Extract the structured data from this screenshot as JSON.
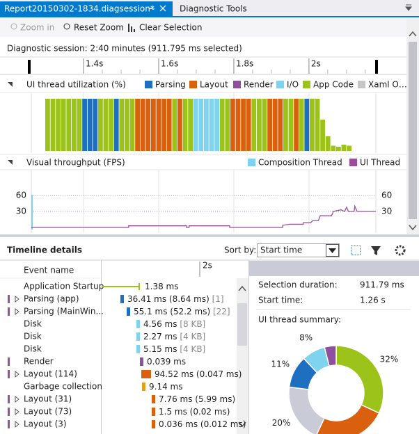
{
  "tabs": {
    "active": "Report20150302-1834.diagsession*",
    "other": "Diagnostic Tools"
  },
  "toolbar": {
    "zoom_in": "Zoom in",
    "reset_zoom": "Reset Zoom",
    "clear_selection": "Clear Selection"
  },
  "session": "Diagnostic session: 2:40 minutes (911.795 ms selected)",
  "ruler": {
    "range": [
      1.261,
      2.178
    ],
    "ticks": [
      {
        "value": 1.4,
        "label": "1.4s"
      },
      {
        "value": 1.6,
        "label": "1.6s"
      },
      {
        "value": 1.8,
        "label": "1.8s"
      },
      {
        "value": 2,
        "label": "2s"
      }
    ]
  },
  "utilization": {
    "title": "UI thread utilization (%)",
    "ylim": [
      0,
      100
    ],
    "legend": [
      {
        "name": "Parsing",
        "color": "#1e6fc0"
      },
      {
        "name": "Layout",
        "color": "#d8600e"
      },
      {
        "name": "Render",
        "color": "#8e4f9e"
      },
      {
        "name": "I/O",
        "color": "#7fd3ee"
      },
      {
        "name": "App Code",
        "color": "#9cc31a"
      },
      {
        "name": "Xaml O…",
        "color": "#c6c6c6"
      }
    ],
    "bar_types": [
      4,
      4,
      4,
      4,
      4,
      4,
      4,
      0,
      0,
      0,
      4,
      4,
      4,
      0,
      4,
      4,
      4,
      1,
      1,
      1,
      1,
      1,
      1,
      1,
      4,
      1,
      4,
      4,
      3,
      3,
      3,
      3,
      3,
      4,
      4,
      1,
      1,
      1,
      1,
      4,
      4,
      4,
      1,
      1,
      1,
      4,
      4,
      1,
      4,
      0,
      4,
      4,
      4,
      4,
      4,
      4,
      4,
      4
    ],
    "bar_values": [
      100,
      100,
      100,
      100,
      100,
      100,
      100,
      100,
      100,
      100,
      100,
      100,
      100,
      100,
      100,
      100,
      100,
      100,
      100,
      100,
      100,
      100,
      100,
      100,
      100,
      100,
      100,
      100,
      100,
      100,
      100,
      100,
      100,
      100,
      100,
      100,
      100,
      100,
      100,
      100,
      100,
      100,
      100,
      100,
      100,
      100,
      100,
      100,
      100,
      100,
      100,
      100,
      60,
      28,
      10,
      8,
      12,
      10
    ]
  },
  "throughput": {
    "title": "Visual throughput (FPS)",
    "ylim": [
      0,
      98
    ],
    "yticks": [
      60,
      30
    ],
    "legend": [
      {
        "name": "Composition Thread",
        "color": "#7fd3ee"
      },
      {
        "name": "UI Thread",
        "color": "#9b4f9b"
      }
    ],
    "x": [
      1.261,
      1.52,
      1.52,
      1.674,
      1.674,
      1.681,
      1.681,
      1.789,
      1.789,
      1.93,
      1.93,
      1.95,
      1.985,
      1.985,
      2.005,
      2.01,
      2.025,
      2.03,
      2.06,
      2.065,
      2.085,
      2.095,
      2.1,
      2.105,
      2.12,
      2.122,
      2.128,
      2.178
    ],
    "values": [
      0,
      0,
      3,
      3,
      0,
      0,
      3,
      3,
      0,
      0,
      4,
      6,
      6,
      9,
      9,
      13,
      13,
      22,
      22,
      30,
      33,
      30,
      38,
      30,
      30,
      40,
      30,
      30
    ]
  },
  "details": {
    "title": "Timeline details",
    "sort_label": "Sort by:",
    "sort_value": "Start time",
    "column": "Event name",
    "ruler": "2s",
    "rows": [
      {
        "name": "Application Startup",
        "duration": "1.38 ms",
        "color": "#9cc31a",
        "expandable": false,
        "marker": false
      },
      {
        "name": "Parsing (app)",
        "duration": "36.41 ms (8.64 ms)",
        "extra": "[1]",
        "color": "#1e6fc0",
        "expandable": true,
        "marker": true
      },
      {
        "name": "Parsing (MainWin...",
        "duration": "55.1 ms (52.2 ms)",
        "extra": "[22]",
        "color": "#1e6fc0",
        "expandable": true,
        "marker": true
      },
      {
        "name": "Disk",
        "duration": "4.56 ms",
        "extra": "[8 KB]",
        "color": "#7fd3ee",
        "expandable": false,
        "marker": false
      },
      {
        "name": "Disk",
        "duration": "2.27 ms",
        "extra": "[4 KB]",
        "color": "#7fd3ee",
        "expandable": false,
        "marker": false
      },
      {
        "name": "Disk",
        "duration": "5.15 ms",
        "extra": "[4 KB]",
        "color": "#7fd3ee",
        "expandable": false,
        "marker": false
      },
      {
        "name": "Render",
        "duration": "0.039 ms",
        "color": "#8e4f9e",
        "expandable": false,
        "marker": true
      },
      {
        "name": "Layout (114)",
        "duration": "94.52 ms (0.047 ms)",
        "color": "#d8600e",
        "expandable": true,
        "marker": true
      },
      {
        "name": "Garbage collection",
        "duration": "9.14 ms",
        "color": "#e0a020",
        "expandable": false,
        "marker": false
      },
      {
        "name": "Layout (31)",
        "duration": "7.76 ms (5.99 ms)",
        "color": "#d8600e",
        "expandable": true,
        "marker": true
      },
      {
        "name": "Layout (73)",
        "duration": "1.5 ms (0.02 ms)",
        "color": "#d8600e",
        "expandable": true,
        "marker": true
      },
      {
        "name": "Layout (3)",
        "duration": "0.036 ms (0.012 ms)",
        "color": "#d8600e",
        "expandable": true,
        "marker": true
      }
    ]
  },
  "summary": {
    "selection_label": "Selection duration:",
    "selection_value": "911.79 ms",
    "start_label": "Start time:",
    "start_value": "1.26 s",
    "title": "UI thread summary:",
    "donut": [
      {
        "value": 32,
        "label": "32%",
        "color": "#9cc31a"
      },
      {
        "value": 25,
        "color": "#d8600e"
      },
      {
        "value": 20,
        "label": "20%",
        "color": "#c9cbd6"
      },
      {
        "value": 11,
        "label": "11%",
        "color": "#1e6fc0"
      },
      {
        "value": 8,
        "label": "8%",
        "color": "#7fd3ee"
      },
      {
        "value": 4,
        "color": "#8e4f9e"
      }
    ]
  }
}
